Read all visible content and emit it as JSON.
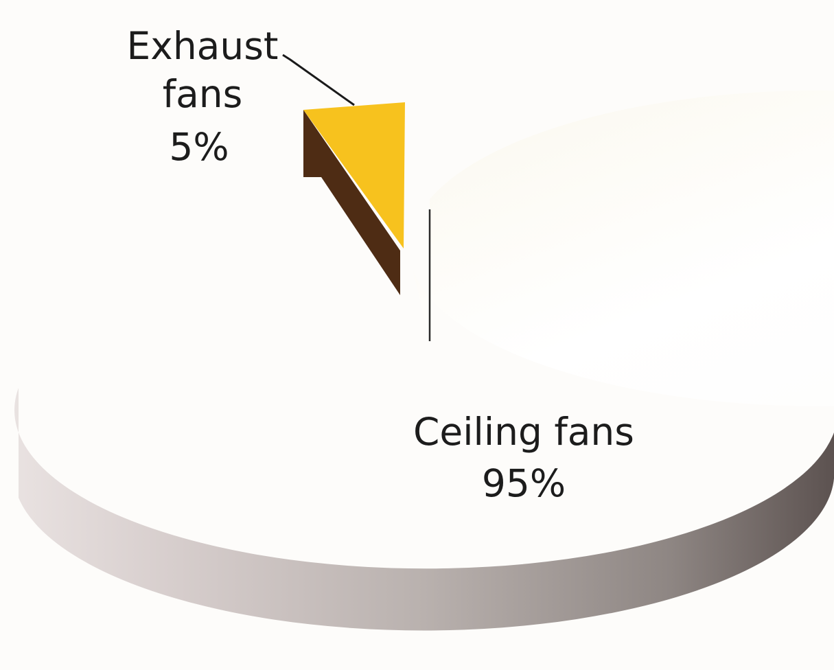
{
  "chart_data": {
    "type": "pie",
    "title": "",
    "slices": [
      {
        "label_lines": [
          "Exhaust",
          "fans"
        ],
        "percent_label": "5%",
        "value": 5,
        "color": "#f7c21e",
        "side_color": "#4e2c14",
        "exploded": true
      },
      {
        "label_lines": [
          "Ceiling fans"
        ],
        "percent_label": "95%",
        "value": 95,
        "color": "#ffffff",
        "side_color": "#8f8582",
        "exploded": false
      }
    ],
    "three_d": true,
    "legend": "none"
  }
}
